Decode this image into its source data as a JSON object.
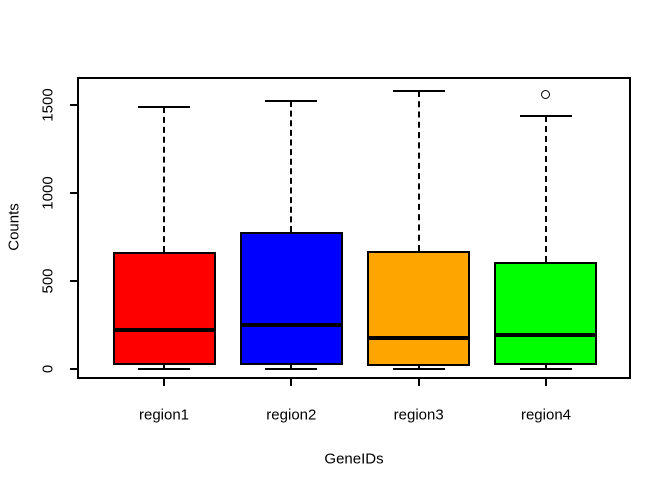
{
  "page": {
    "background": "#ffffff"
  },
  "chart_data": {
    "type": "boxplot",
    "title": "",
    "xlabel": "GeneIDs",
    "ylabel": "Counts",
    "categories": [
      "region1",
      "region2",
      "region3",
      "region4"
    ],
    "yticks": [
      0,
      500,
      1000,
      1500
    ],
    "ylim": [
      -60,
      1660
    ],
    "grid": false,
    "legend": "none",
    "frame_color": "#000000",
    "boxes": [
      {
        "label": "region1",
        "color": "#ff0000",
        "min": 0,
        "q1": 20,
        "median": 220,
        "q3": 665,
        "max": 1490,
        "outliers": []
      },
      {
        "label": "region2",
        "color": "#0000ff",
        "min": 0,
        "q1": 25,
        "median": 250,
        "q3": 780,
        "max": 1520,
        "outliers": []
      },
      {
        "label": "region3",
        "color": "#ffa500",
        "min": 0,
        "q1": 17,
        "median": 175,
        "q3": 670,
        "max": 1580,
        "outliers": []
      },
      {
        "label": "region4",
        "color": "#00ff00",
        "min": 0,
        "q1": 23,
        "median": 195,
        "q3": 610,
        "max": 1440,
        "outliers": [
          1560
        ]
      }
    ]
  }
}
